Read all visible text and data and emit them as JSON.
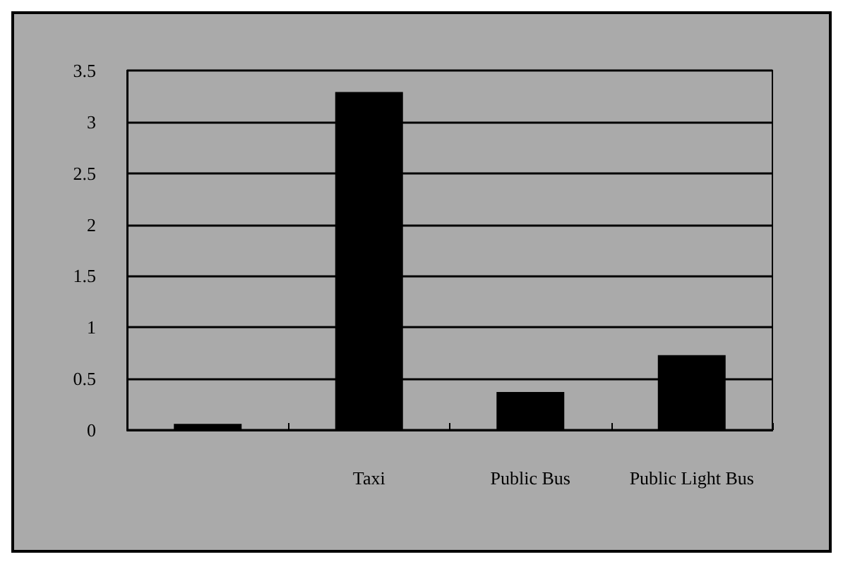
{
  "chart_data": {
    "type": "bar",
    "categories": [
      null,
      "Taxi",
      "Public Bus",
      "Public Light Bus"
    ],
    "values": [
      0.06,
      3.29,
      0.37,
      0.73
    ],
    "color": "#000000",
    "ylim": [
      0,
      3.5
    ],
    "yticks": [
      0,
      0.5,
      1,
      1.5,
      2,
      2.5,
      3,
      3.5
    ],
    "grid": "y"
  }
}
